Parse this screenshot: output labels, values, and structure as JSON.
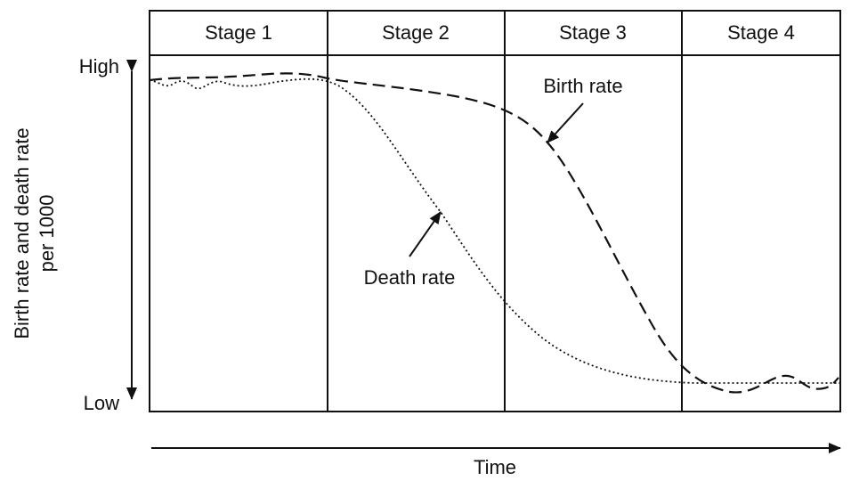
{
  "header": {
    "stages": [
      "Stage 1",
      "Stage 2",
      "Stage 3",
      "Stage 4"
    ]
  },
  "axis": {
    "y_label_lines": [
      "Birth rate and death rate",
      "per 1000"
    ],
    "high": "High",
    "low": "Low",
    "x_label": "Time"
  },
  "labels": {
    "birth_rate": "Birth rate",
    "death_rate": "Death rate"
  }
}
